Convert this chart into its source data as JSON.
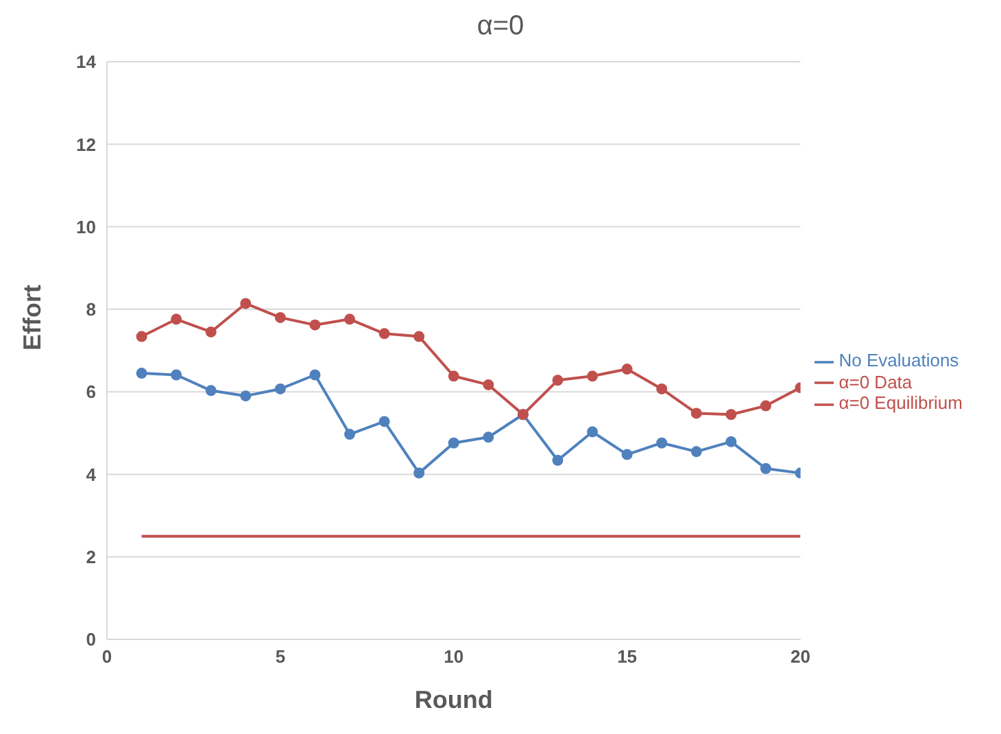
{
  "chart_data": {
    "type": "line",
    "title": "α=0",
    "xlabel": "Round",
    "ylabel": "Effort",
    "x": [
      1,
      2,
      3,
      4,
      5,
      6,
      7,
      8,
      9,
      10,
      11,
      12,
      13,
      14,
      15,
      16,
      17,
      18,
      19,
      20
    ],
    "series": [
      {
        "name": "α=0 Equilibrium",
        "color": "#c0504d",
        "marker": "none",
        "values": [
          2.5,
          2.5,
          2.5,
          2.5,
          2.5,
          2.5,
          2.5,
          2.5,
          2.5,
          2.5,
          2.5,
          2.5,
          2.5,
          2.5,
          2.5,
          2.5,
          2.5,
          2.5,
          2.5,
          2.5
        ]
      },
      {
        "name": "No Evaluations",
        "color": "#4f81bd",
        "marker": "circle",
        "values": [
          6.45,
          6.41,
          6.03,
          5.9,
          6.07,
          6.41,
          4.97,
          5.28,
          4.03,
          4.76,
          4.9,
          5.45,
          4.34,
          5.03,
          4.48,
          4.76,
          4.55,
          4.79,
          4.14,
          4.03
        ]
      },
      {
        "name": "α=0 Data",
        "color": "#c0504d",
        "marker": "circle",
        "values": [
          7.34,
          7.76,
          7.45,
          8.14,
          7.8,
          7.62,
          7.76,
          7.41,
          7.34,
          6.38,
          6.17,
          5.45,
          6.28,
          6.38,
          6.55,
          6.07,
          5.48,
          5.45,
          5.66,
          6.1
        ]
      }
    ],
    "xlim": [
      0,
      20
    ],
    "xticks": [
      0,
      5,
      10,
      15,
      20
    ],
    "ylim": [
      0,
      14
    ],
    "yticks": [
      0,
      2,
      4,
      6,
      8,
      10,
      12,
      14
    ],
    "grid": "y",
    "legend": "right"
  }
}
